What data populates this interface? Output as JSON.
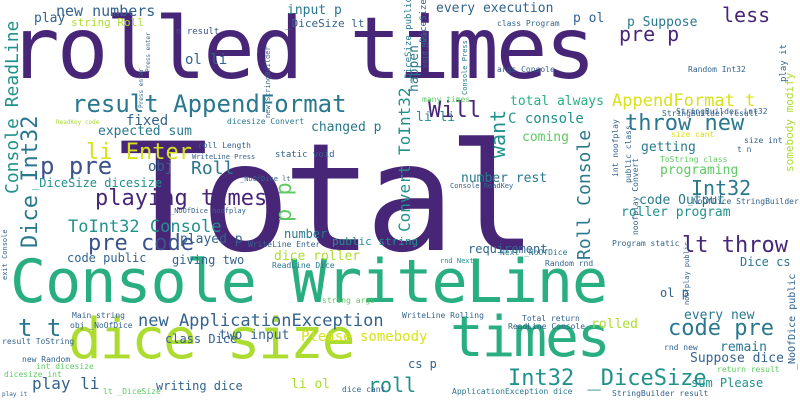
{
  "palette": {
    "dark_purple": "#482677",
    "indigo": "#3b528b",
    "blue": "#33638d",
    "teal": "#2a788e",
    "teal_green": "#21918c",
    "green": "#28ae80",
    "light_green": "#5ec962",
    "lime": "#addc30",
    "yellow": "#d8e219"
  },
  "words": [
    {
      "text": "Total",
      "color": "dark_purple"
    },
    {
      "text": "rolled times",
      "color": "dark_purple"
    },
    {
      "text": "Console WriteLine",
      "color": "green"
    },
    {
      "text": "dice size",
      "color": "lime"
    },
    {
      "text": "times",
      "color": "green"
    },
    {
      "text": "result AppendFormat",
      "color": "teal"
    },
    {
      "text": "playing times",
      "color": "dark_purple"
    },
    {
      "text": "pre code",
      "color": "indigo"
    },
    {
      "text": "code pre",
      "color": "teal"
    },
    {
      "text": "throw new",
      "color": "teal"
    },
    {
      "text": "lt throw",
      "color": "dark_purple"
    },
    {
      "text": "Int32 _DiceSize",
      "color": "teal_green"
    },
    {
      "text": "Dice Int32",
      "color": "teal"
    },
    {
      "text": "Console ReadLine",
      "color": "teal_green"
    },
    {
      "text": "ToInt32 Console",
      "color": "teal_green"
    },
    {
      "text": "new ApplicationException",
      "color": "blue"
    },
    {
      "text": "li Enter",
      "color": "yellow"
    },
    {
      "text": "p pre",
      "color": "indigo"
    },
    {
      "text": "t t",
      "color": "teal"
    },
    {
      "text": "Roll",
      "color": "teal"
    },
    {
      "text": "roll",
      "color": "teal_green"
    },
    {
      "text": "Int32",
      "color": "teal"
    },
    {
      "text": "Will",
      "color": "dark_purple"
    },
    {
      "text": "want",
      "color": "teal_green"
    },
    {
      "text": "less",
      "color": "dark_purple"
    },
    {
      "text": "pre p",
      "color": "dark_purple"
    },
    {
      "text": "AppendFormat t",
      "color": "yellow"
    },
    {
      "text": "Roll Console",
      "color": "teal"
    },
    {
      "text": "Convert ToInt32",
      "color": "teal_green"
    },
    {
      "text": "p p",
      "color": "light_green"
    },
    {
      "text": "Please somebody",
      "color": "yellow"
    },
    {
      "text": "rolled",
      "color": "lime"
    },
    {
      "text": "play li",
      "color": "blue"
    },
    {
      "text": "new numbers",
      "color": "blue"
    },
    {
      "text": "input p",
      "color": "teal"
    },
    {
      "text": "every execution",
      "color": "blue"
    },
    {
      "text": "string Roll",
      "color": "lime"
    },
    {
      "text": "play",
      "color": "blue"
    },
    {
      "text": "ol li",
      "color": "blue"
    },
    {
      "text": "li li",
      "color": "teal_green"
    },
    {
      "text": "p ol",
      "color": "blue"
    },
    {
      "text": "p Suppose",
      "color": "teal"
    },
    {
      "text": "fixed",
      "color": "blue"
    },
    {
      "text": "expected sum",
      "color": "teal"
    },
    {
      "text": "obj",
      "color": "blue"
    },
    {
      "text": "C console",
      "color": "teal_green"
    },
    {
      "text": "coming",
      "color": "light_green"
    },
    {
      "text": "getting",
      "color": "teal"
    },
    {
      "text": "programing",
      "color": "light_green"
    },
    {
      "text": "code Output",
      "color": "teal"
    },
    {
      "text": "roller program",
      "color": "teal_green"
    },
    {
      "text": "total always",
      "color": "green"
    },
    {
      "text": "changed p",
      "color": "teal"
    },
    {
      "text": "number rest",
      "color": "teal"
    },
    {
      "text": "requirement",
      "color": "blue"
    },
    {
      "text": "public string",
      "color": "teal_green"
    },
    {
      "text": "dice roller",
      "color": "lime"
    },
    {
      "text": "two input",
      "color": "blue"
    },
    {
      "text": "class Dice",
      "color": "blue"
    },
    {
      "text": "played p",
      "color": "blue"
    },
    {
      "text": "giving two",
      "color": "blue"
    },
    {
      "text": "code public",
      "color": "blue"
    },
    {
      "text": "number",
      "color": "teal"
    },
    {
      "text": "every new",
      "color": "teal"
    },
    {
      "text": "remain",
      "color": "teal"
    },
    {
      "text": "Suppose dice",
      "color": "blue"
    },
    {
      "text": "sum Please",
      "color": "teal_green"
    },
    {
      "text": "writing dice",
      "color": "blue"
    },
    {
      "text": "li ol",
      "color": "lime"
    },
    {
      "text": "cs p",
      "color": "blue"
    },
    {
      "text": "ol p",
      "color": "blue"
    },
    {
      "text": "Dice cs",
      "color": "teal"
    },
    {
      "text": "happen",
      "color": "teal"
    },
    {
      "text": "_DiceSize dicesize",
      "color": "teal_green"
    },
    {
      "text": "somebody modify",
      "color": "lime"
    },
    {
      "text": "size cant",
      "color": "yellow"
    },
    {
      "text": "n result",
      "color": "indigo"
    },
    {
      "text": "args Console",
      "color": "blue"
    },
    {
      "text": "Random Int32",
      "color": "blue"
    },
    {
      "text": "StringBuilder int32",
      "color": "blue"
    },
    {
      "text": "_DiceSize lt",
      "color": "blue"
    },
    {
      "text": "roll Length",
      "color": "blue"
    },
    {
      "text": "static void",
      "color": "blue"
    },
    {
      "text": "WriteLine Enter",
      "color": "blue"
    },
    {
      "text": "ReadLine Dice",
      "color": "teal"
    },
    {
      "text": "rnd Next",
      "color": "teal_green"
    },
    {
      "text": "Next _NoOfDice",
      "color": "teal"
    },
    {
      "text": "Random rnd",
      "color": "blue"
    },
    {
      "text": "Program static",
      "color": "blue"
    },
    {
      "text": "string args",
      "color": "light_green"
    },
    {
      "text": "Main string",
      "color": "blue"
    },
    {
      "text": "obj _NoOfDice",
      "color": "blue"
    },
    {
      "text": "WriteLine Rolling",
      "color": "blue"
    },
    {
      "text": "Total return",
      "color": "blue"
    },
    {
      "text": "ReadLine Console",
      "color": "blue"
    },
    {
      "text": "result ToString",
      "color": "blue"
    },
    {
      "text": "new Random",
      "color": "blue"
    },
    {
      "text": "int dicesize",
      "color": "light_green"
    },
    {
      "text": "dicesize int",
      "color": "light_green"
    },
    {
      "text": "lt _DiceSize",
      "color": "light_green"
    },
    {
      "text": "dice cant",
      "color": "blue"
    },
    {
      "text": "ApplicationException dice",
      "color": "teal"
    },
    {
      "text": "StringBuilder result",
      "color": "blue"
    },
    {
      "text": "rnd new",
      "color": "blue"
    },
    {
      "text": "return result",
      "color": "light_green"
    },
    {
      "text": "class Program",
      "color": "blue"
    },
    {
      "text": "many times",
      "color": "light_green"
    },
    {
      "text": "ReadKey code",
      "color": "lime"
    },
    {
      "text": "Console Press",
      "color": "teal"
    },
    {
      "text": "WriteLine Press",
      "color": "blue"
    },
    {
      "text": "_NoOfDice lt",
      "color": "blue"
    },
    {
      "text": "_NoOfDice noofplay",
      "color": "blue"
    },
    {
      "text": "Console ReadKey",
      "color": "blue"
    },
    {
      "text": "_NoOfDice StringBuilder",
      "color": "blue"
    },
    {
      "text": "ToString class",
      "color": "light_green"
    },
    {
      "text": "size int",
      "color": "blue"
    },
    {
      "text": "t n",
      "color": "blue"
    },
    {
      "text": "StringBuilder result",
      "color": "blue"
    },
    {
      "text": "Press enter",
      "color": "blue"
    },
    {
      "text": "Press enter",
      "color": "blue"
    },
    {
      "text": "void Main",
      "color": "blue"
    },
    {
      "text": "new StringBuilder",
      "color": "blue"
    },
    {
      "text": "_DiceSize public",
      "color": "teal"
    },
    {
      "text": "dicesize Convert",
      "color": "teal"
    },
    {
      "text": "public class",
      "color": "blue"
    },
    {
      "text": "noofplay Convert",
      "color": "blue"
    },
    {
      "text": "int noofplay",
      "color": "blue"
    },
    {
      "text": "_NoOfDice public",
      "color": "blue"
    },
    {
      "text": "exit Console",
      "color": "blue"
    },
    {
      "text": "noofplay public",
      "color": "blue"
    },
    {
      "text": "play it",
      "color": "blue"
    },
    {
      "text": "play it",
      "color": "blue"
    },
    {
      "text": "_DiceSize public",
      "color": "blue"
    }
  ]
}
